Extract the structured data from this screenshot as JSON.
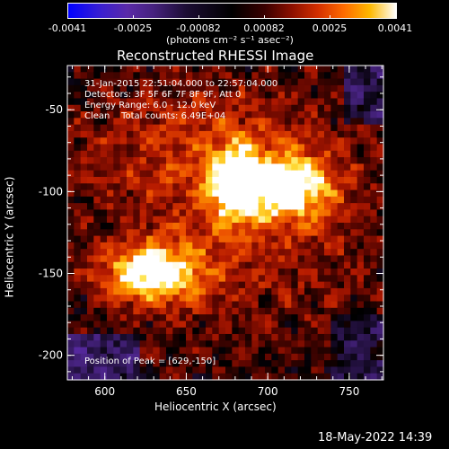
{
  "colorbar": {
    "tick_labels": [
      "-0.0041",
      "-0.0025",
      "-0.00082",
      "0.00082",
      "0.0025",
      "0.0041"
    ],
    "unit_label": "(photons cm⁻² s⁻¹ asec⁻²)",
    "range": [
      -0.0041,
      0.0041
    ]
  },
  "chart_data": {
    "type": "heatmap",
    "title": "Reconstructed RHESSI Image",
    "xlabel": "Heliocentric X (arcsec)",
    "ylabel": "Heliocentric Y (arcsec)",
    "x_ticks": [
      "600",
      "650",
      "700",
      "750"
    ],
    "y_ticks": [
      "-50",
      "-100",
      "-150",
      "-200"
    ],
    "xlim": [
      577,
      771
    ],
    "ylim": [
      -215,
      -23
    ],
    "sources": [
      {
        "x": 629,
        "y": -150,
        "peak": 0.0041
      },
      {
        "x": 715,
        "y": -97,
        "peak": 0.0036
      },
      {
        "x": 680,
        "y": -95,
        "peak": 0.0033
      }
    ],
    "annotations": {
      "time": "31-Jan-2015 22:51:04.000 to 22:57:04.000",
      "detectors": "Detectors: 3F 5F 6F 7F 8F 9F, Att 0",
      "energy": "Energy Range: 6.0 - 12.0 keV",
      "clean": "Clean    Total counts: 6.49E+04",
      "peak": "Position of Peak = [629,-150]"
    }
  },
  "footer": {
    "date": "18-May-2022 14:39"
  }
}
